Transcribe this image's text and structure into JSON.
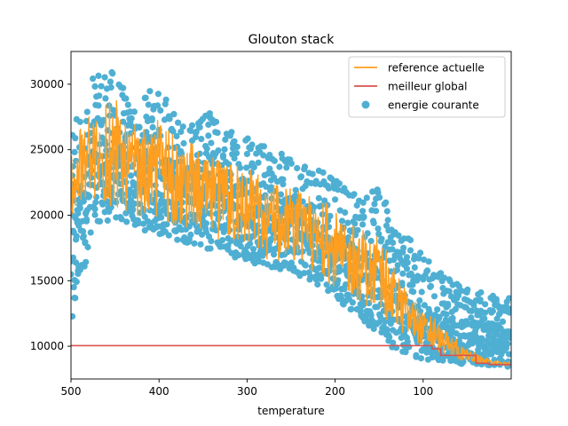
{
  "chart_data": {
    "type": "line",
    "title": "Glouton stack",
    "xlabel": "temperature",
    "ylabel": "",
    "x_reversed": true,
    "xlim": [
      500,
      0
    ],
    "ylim": [
      7500,
      32500
    ],
    "xticks": [
      500,
      400,
      300,
      200,
      100
    ],
    "yticks": [
      10000,
      15000,
      20000,
      25000,
      30000
    ],
    "grid": false,
    "legend_position": "top-right",
    "series": [
      {
        "name": "reference actuelle",
        "kind": "line",
        "color": "#ff9e1f",
        "band": [
          {
            "x": 500,
            "low": 20000,
            "high": 26000
          },
          {
            "x": 475,
            "low": 20500,
            "high": 28000
          },
          {
            "x": 450,
            "low": 20500,
            "high": 29000
          },
          {
            "x": 425,
            "low": 20000,
            "high": 27000
          },
          {
            "x": 400,
            "low": 19500,
            "high": 27500
          },
          {
            "x": 375,
            "low": 19000,
            "high": 25500
          },
          {
            "x": 350,
            "low": 18500,
            "high": 25500
          },
          {
            "x": 325,
            "low": 18000,
            "high": 24000
          },
          {
            "x": 300,
            "low": 17500,
            "high": 24000
          },
          {
            "x": 275,
            "low": 16500,
            "high": 22500
          },
          {
            "x": 250,
            "low": 16000,
            "high": 22000
          },
          {
            "x": 225,
            "low": 15500,
            "high": 21500
          },
          {
            "x": 200,
            "low": 14500,
            "high": 20500
          },
          {
            "x": 175,
            "low": 13500,
            "high": 19500
          },
          {
            "x": 150,
            "low": 12500,
            "high": 18500
          },
          {
            "x": 125,
            "low": 11000,
            "high": 15000
          },
          {
            "x": 100,
            "low": 10000,
            "high": 13000
          },
          {
            "x": 75,
            "low": 9300,
            "high": 11500
          },
          {
            "x": 50,
            "low": 8800,
            "high": 9800
          },
          {
            "x": 25,
            "low": 8600,
            "high": 9000
          },
          {
            "x": 5,
            "low": 8500,
            "high": 8800
          }
        ]
      },
      {
        "name": "meilleur global",
        "kind": "step",
        "color": "#d9534f",
        "points": [
          {
            "x": 500,
            "y": 10050
          },
          {
            "x": 100,
            "y": 10050
          },
          {
            "x": 90,
            "y": 9800
          },
          {
            "x": 80,
            "y": 9300
          },
          {
            "x": 50,
            "y": 9300
          },
          {
            "x": 40,
            "y": 8700
          },
          {
            "x": 25,
            "y": 8600
          },
          {
            "x": 1,
            "y": 8550
          }
        ]
      },
      {
        "name": "energie courante",
        "kind": "scatter",
        "color": "#4fafd3",
        "band": [
          {
            "x": 500,
            "low": 10000,
            "high": 28000
          },
          {
            "x": 475,
            "low": 19500,
            "high": 30500
          },
          {
            "x": 450,
            "low": 19500,
            "high": 31200
          },
          {
            "x": 425,
            "low": 19000,
            "high": 28500
          },
          {
            "x": 400,
            "low": 18500,
            "high": 30300
          },
          {
            "x": 375,
            "low": 18000,
            "high": 27000
          },
          {
            "x": 350,
            "low": 17500,
            "high": 28500
          },
          {
            "x": 325,
            "low": 17000,
            "high": 26500
          },
          {
            "x": 300,
            "low": 16500,
            "high": 27000
          },
          {
            "x": 275,
            "low": 16000,
            "high": 25000
          },
          {
            "x": 250,
            "low": 15500,
            "high": 24500
          },
          {
            "x": 225,
            "low": 15000,
            "high": 24000
          },
          {
            "x": 200,
            "low": 13500,
            "high": 23000
          },
          {
            "x": 175,
            "low": 12500,
            "high": 22000
          },
          {
            "x": 150,
            "low": 10500,
            "high": 22000
          },
          {
            "x": 125,
            "low": 9500,
            "high": 19000
          },
          {
            "x": 100,
            "low": 9000,
            "high": 17000
          },
          {
            "x": 75,
            "low": 8800,
            "high": 15500
          },
          {
            "x": 50,
            "low": 8600,
            "high": 14500
          },
          {
            "x": 25,
            "low": 8500,
            "high": 14000
          },
          {
            "x": 5,
            "low": 8400,
            "high": 13800
          }
        ]
      }
    ]
  }
}
